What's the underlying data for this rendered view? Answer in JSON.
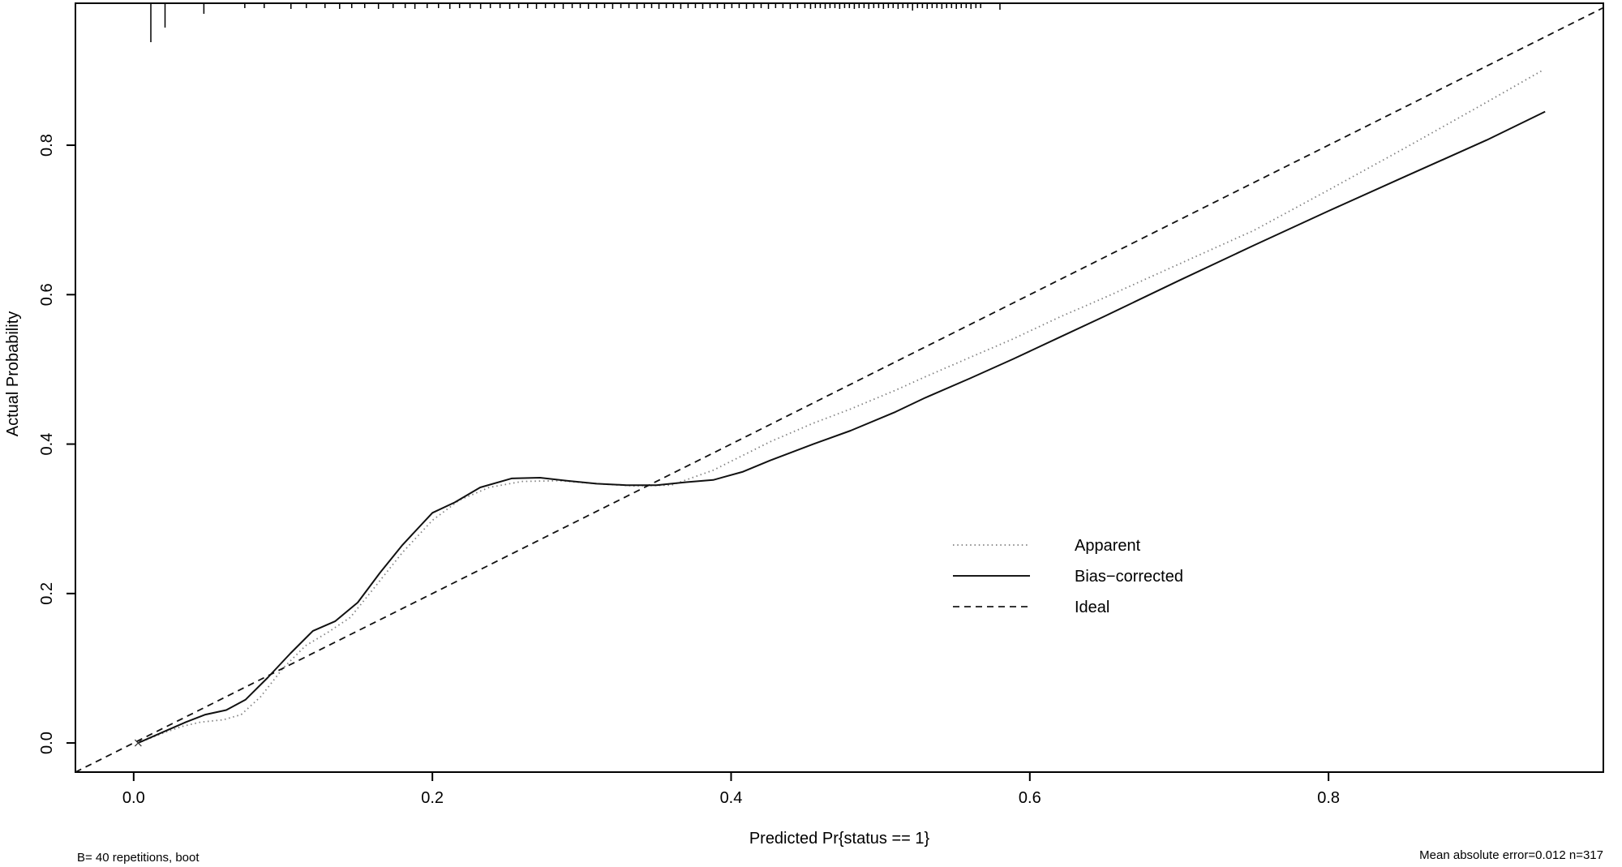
{
  "chart_data": {
    "type": "line",
    "title": "",
    "xlabel": "Predicted Pr{status == 1}",
    "ylabel": "Actual Probability",
    "footnote_left": "B= 40 repetitions, boot",
    "footnote_right": "Mean absolute error=0.012 n=317",
    "xlim": [
      -0.039,
      0.984
    ],
    "ylim": [
      -0.039,
      0.99
    ],
    "grid": false,
    "x_ticks": [
      0.0,
      0.2,
      0.4,
      0.6,
      0.8
    ],
    "x_tick_labels": [
      "0.0",
      "0.2",
      "0.4",
      "0.6",
      "0.8"
    ],
    "y_ticks": [
      0.0,
      0.2,
      0.4,
      0.6,
      0.8
    ],
    "y_tick_labels": [
      "0.0",
      "0.2",
      "0.4",
      "0.6",
      "0.8"
    ],
    "axis_color": "#000000",
    "background": "#ffffff",
    "legend": {
      "position": "right-center",
      "entries": [
        {
          "label": "Apparent",
          "style": "dotted",
          "color": "#7f7f7f"
        },
        {
          "label": "Bias−corrected",
          "style": "solid",
          "color": "#1a1a1a"
        },
        {
          "label": "Ideal",
          "style": "dashed",
          "color": "#1a1a1a"
        }
      ]
    },
    "series": [
      {
        "name": "Apparent",
        "line": "dotted",
        "color": "#828282",
        "points": [
          [
            0.003,
            0.0
          ],
          [
            0.018,
            0.012
          ],
          [
            0.032,
            0.022
          ],
          [
            0.045,
            0.028
          ],
          [
            0.06,
            0.031
          ],
          [
            0.072,
            0.038
          ],
          [
            0.085,
            0.062
          ],
          [
            0.1,
            0.1
          ],
          [
            0.115,
            0.13
          ],
          [
            0.13,
            0.148
          ],
          [
            0.145,
            0.168
          ],
          [
            0.16,
            0.205
          ],
          [
            0.18,
            0.255
          ],
          [
            0.2,
            0.298
          ],
          [
            0.218,
            0.325
          ],
          [
            0.238,
            0.342
          ],
          [
            0.26,
            0.35
          ],
          [
            0.285,
            0.351
          ],
          [
            0.31,
            0.347
          ],
          [
            0.335,
            0.344
          ],
          [
            0.36,
            0.345
          ],
          [
            0.388,
            0.365
          ],
          [
            0.426,
            0.403
          ],
          [
            0.455,
            0.428
          ],
          [
            0.48,
            0.447
          ],
          [
            0.51,
            0.472
          ],
          [
            0.53,
            0.49
          ],
          [
            0.56,
            0.516
          ],
          [
            0.589,
            0.541
          ],
          [
            0.62,
            0.57
          ],
          [
            0.65,
            0.596
          ],
          [
            0.7,
            0.641
          ],
          [
            0.75,
            0.686
          ],
          [
            0.8,
            0.74
          ],
          [
            0.85,
            0.795
          ],
          [
            0.9,
            0.851
          ],
          [
            0.944,
            0.901
          ]
        ]
      },
      {
        "name": "Bias-corrected",
        "line": "solid",
        "color": "#111111",
        "points": [
          [
            0.003,
            0.0
          ],
          [
            0.02,
            0.015
          ],
          [
            0.035,
            0.028
          ],
          [
            0.048,
            0.038
          ],
          [
            0.062,
            0.044
          ],
          [
            0.075,
            0.058
          ],
          [
            0.09,
            0.088
          ],
          [
            0.105,
            0.12
          ],
          [
            0.12,
            0.15
          ],
          [
            0.135,
            0.163
          ],
          [
            0.15,
            0.188
          ],
          [
            0.165,
            0.228
          ],
          [
            0.18,
            0.265
          ],
          [
            0.2,
            0.308
          ],
          [
            0.215,
            0.322
          ],
          [
            0.232,
            0.342
          ],
          [
            0.253,
            0.354
          ],
          [
            0.272,
            0.355
          ],
          [
            0.29,
            0.351
          ],
          [
            0.31,
            0.347
          ],
          [
            0.33,
            0.345
          ],
          [
            0.35,
            0.345
          ],
          [
            0.37,
            0.349
          ],
          [
            0.388,
            0.352
          ],
          [
            0.408,
            0.363
          ],
          [
            0.426,
            0.378
          ],
          [
            0.455,
            0.4
          ],
          [
            0.48,
            0.418
          ],
          [
            0.51,
            0.443
          ],
          [
            0.53,
            0.462
          ],
          [
            0.56,
            0.488
          ],
          [
            0.589,
            0.514
          ],
          [
            0.62,
            0.543
          ],
          [
            0.65,
            0.571
          ],
          [
            0.7,
            0.619
          ],
          [
            0.75,
            0.666
          ],
          [
            0.8,
            0.712
          ],
          [
            0.85,
            0.757
          ],
          [
            0.906,
            0.807
          ],
          [
            0.945,
            0.845
          ]
        ]
      },
      {
        "name": "Ideal",
        "line": "dashed",
        "color": "#111111",
        "points": [
          [
            -0.039,
            -0.039
          ],
          [
            0.984,
            0.984
          ]
        ]
      }
    ],
    "origin_marker": {
      "x": 0.003,
      "y": 0.0,
      "symbol": "x"
    },
    "rug": {
      "description": "spike histogram of predicted probabilities along top edge",
      "ticks": [
        [
          0.0115,
          48
        ],
        [
          0.021,
          30
        ],
        [
          0.047,
          13
        ],
        [
          0.0744,
          6
        ],
        [
          0.0874,
          6
        ],
        [
          0.1053,
          7
        ],
        [
          0.1156,
          6
        ],
        [
          0.1281,
          6
        ],
        [
          0.1379,
          7
        ],
        [
          0.146,
          6
        ],
        [
          0.1547,
          6
        ],
        [
          0.1639,
          7
        ],
        [
          0.1737,
          6
        ],
        [
          0.1818,
          6
        ],
        [
          0.1883,
          7
        ],
        [
          0.1965,
          6
        ],
        [
          0.2041,
          6
        ],
        [
          0.2117,
          7
        ],
        [
          0.2182,
          6
        ],
        [
          0.2252,
          6
        ],
        [
          0.2323,
          7
        ],
        [
          0.2388,
          6
        ],
        [
          0.2453,
          6
        ],
        [
          0.2518,
          7
        ],
        [
          0.2578,
          6
        ],
        [
          0.2638,
          6
        ],
        [
          0.2697,
          7
        ],
        [
          0.2757,
          6
        ],
        [
          0.2817,
          6
        ],
        [
          0.2876,
          7
        ],
        [
          0.2936,
          6
        ],
        [
          0.299,
          6
        ],
        [
          0.3045,
          7
        ],
        [
          0.3099,
          6
        ],
        [
          0.3153,
          6
        ],
        [
          0.3207,
          7
        ],
        [
          0.3262,
          6
        ],
        [
          0.3316,
          6
        ],
        [
          0.337,
          7
        ],
        [
          0.3419,
          6
        ],
        [
          0.3468,
          6
        ],
        [
          0.3517,
          7
        ],
        [
          0.3566,
          6
        ],
        [
          0.3614,
          6
        ],
        [
          0.3663,
          7
        ],
        [
          0.3712,
          6
        ],
        [
          0.3761,
          6
        ],
        [
          0.381,
          7
        ],
        [
          0.3859,
          6
        ],
        [
          0.3908,
          6
        ],
        [
          0.3956,
          7
        ],
        [
          0.4005,
          6
        ],
        [
          0.4054,
          6
        ],
        [
          0.4103,
          7
        ],
        [
          0.4152,
          6
        ],
        [
          0.4201,
          6
        ],
        [
          0.425,
          7
        ],
        [
          0.4298,
          6
        ],
        [
          0.4347,
          6
        ],
        [
          0.4396,
          7
        ],
        [
          0.4445,
          6
        ],
        [
          0.4494,
          6
        ],
        [
          0.4532,
          7
        ],
        [
          0.4564,
          6
        ],
        [
          0.4597,
          6
        ],
        [
          0.463,
          7
        ],
        [
          0.4662,
          6
        ],
        [
          0.4695,
          6
        ],
        [
          0.4727,
          7
        ],
        [
          0.476,
          6
        ],
        [
          0.4792,
          6
        ],
        [
          0.4825,
          7
        ],
        [
          0.4857,
          6
        ],
        [
          0.489,
          6
        ],
        [
          0.4922,
          7
        ],
        [
          0.4955,
          6
        ],
        [
          0.4988,
          6
        ],
        [
          0.502,
          7
        ],
        [
          0.5053,
          6
        ],
        [
          0.5085,
          6
        ],
        [
          0.5118,
          7
        ],
        [
          0.515,
          6
        ],
        [
          0.5183,
          6
        ],
        [
          0.5215,
          9
        ],
        [
          0.5248,
          6
        ],
        [
          0.5281,
          6
        ],
        [
          0.5313,
          7
        ],
        [
          0.5346,
          6
        ],
        [
          0.5378,
          6
        ],
        [
          0.5411,
          7
        ],
        [
          0.5443,
          6
        ],
        [
          0.5476,
          6
        ],
        [
          0.5508,
          7
        ],
        [
          0.5541,
          6
        ],
        [
          0.5574,
          6
        ],
        [
          0.5606,
          7
        ],
        [
          0.5639,
          6
        ],
        [
          0.5671,
          6
        ],
        [
          0.58,
          8
        ]
      ]
    }
  }
}
